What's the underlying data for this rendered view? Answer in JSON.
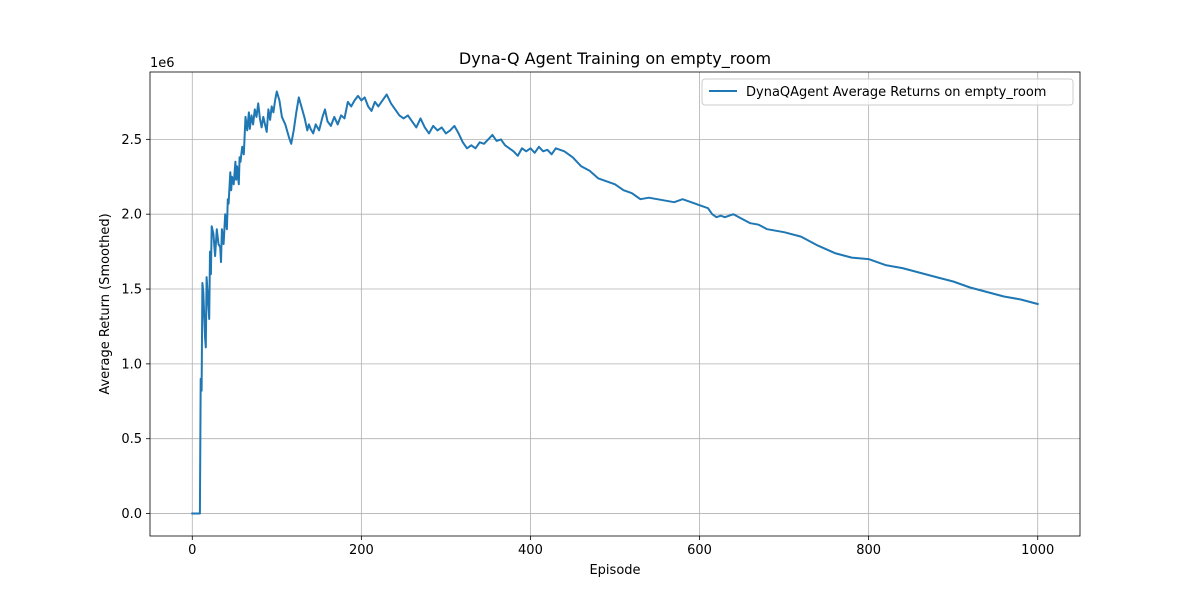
{
  "chart_data": {
    "type": "line",
    "title": "Dyna-Q Agent Training on empty_room",
    "xlabel": "Episode",
    "ylabel": "Average Return (Smoothed)",
    "y_offset_label": "1e6",
    "xlim": [
      -50,
      1050
    ],
    "ylim": [
      -150000,
      2950000
    ],
    "xticks": [
      0,
      200,
      400,
      600,
      800,
      1000
    ],
    "xtick_labels": [
      "0",
      "200",
      "400",
      "600",
      "800",
      "1000"
    ],
    "yticks": [
      0,
      500000,
      1000000,
      1500000,
      2000000,
      2500000
    ],
    "ytick_labels": [
      "0.0",
      "0.5",
      "1.0",
      "1.5",
      "2.0",
      "2.5"
    ],
    "grid": true,
    "legend_position": "top-right",
    "series": [
      {
        "name": "DynaQAgent Average Returns on empty_room",
        "color": "#1f77b4",
        "x": [
          0,
          5,
          9,
          10,
          11,
          12,
          13,
          15,
          16,
          17,
          19,
          20,
          21,
          22,
          23,
          25,
          27,
          29,
          31,
          33,
          34,
          35,
          37,
          39,
          41,
          42,
          43,
          45,
          46,
          47,
          49,
          51,
          52,
          53,
          55,
          56,
          57,
          59,
          61,
          63,
          65,
          67,
          68,
          70,
          72,
          74,
          76,
          78,
          80,
          82,
          84,
          86,
          88,
          90,
          92,
          94,
          96,
          98,
          100,
          103,
          106,
          110,
          114,
          117,
          120,
          123,
          126,
          130,
          133,
          136,
          138,
          140,
          143,
          146,
          150,
          154,
          157,
          160,
          164,
          168,
          172,
          176,
          180,
          184,
          188,
          192,
          196,
          200,
          204,
          208,
          212,
          216,
          220,
          225,
          230,
          235,
          240,
          245,
          250,
          255,
          260,
          265,
          270,
          275,
          280,
          285,
          290,
          295,
          300,
          305,
          310,
          315,
          320,
          325,
          330,
          335,
          340,
          345,
          350,
          355,
          360,
          365,
          370,
          375,
          380,
          385,
          390,
          395,
          400,
          405,
          410,
          415,
          420,
          425,
          430,
          440,
          450,
          460,
          470,
          480,
          490,
          500,
          510,
          520,
          530,
          540,
          550,
          560,
          570,
          580,
          590,
          600,
          610,
          615,
          620,
          625,
          630,
          640,
          650,
          660,
          670,
          680,
          690,
          700,
          720,
          740,
          760,
          780,
          800,
          820,
          840,
          860,
          880,
          900,
          920,
          940,
          960,
          980,
          1000
        ],
        "values": [
          0,
          0,
          0,
          900000,
          820000,
          1540000,
          1480000,
          1180000,
          1110000,
          1580000,
          1400000,
          1300000,
          1750000,
          1600000,
          1920000,
          1870000,
          1720000,
          1900000,
          1800000,
          1780000,
          1680000,
          1900000,
          1800000,
          2000000,
          1900000,
          2100000,
          2070000,
          2280000,
          2160000,
          2250000,
          2200000,
          2350000,
          2230000,
          2320000,
          2200000,
          2380000,
          2350000,
          2450000,
          2400000,
          2650000,
          2560000,
          2680000,
          2570000,
          2660000,
          2600000,
          2700000,
          2650000,
          2740000,
          2640000,
          2580000,
          2650000,
          2600000,
          2550000,
          2700000,
          2630000,
          2720000,
          2680000,
          2760000,
          2820000,
          2760000,
          2650000,
          2600000,
          2520000,
          2470000,
          2560000,
          2680000,
          2780000,
          2700000,
          2640000,
          2560000,
          2600000,
          2570000,
          2540000,
          2600000,
          2560000,
          2650000,
          2700000,
          2620000,
          2590000,
          2650000,
          2600000,
          2660000,
          2640000,
          2750000,
          2720000,
          2760000,
          2790000,
          2760000,
          2780000,
          2720000,
          2690000,
          2750000,
          2720000,
          2760000,
          2800000,
          2740000,
          2700000,
          2660000,
          2640000,
          2660000,
          2620000,
          2580000,
          2640000,
          2580000,
          2540000,
          2590000,
          2560000,
          2580000,
          2540000,
          2560000,
          2590000,
          2540000,
          2480000,
          2440000,
          2460000,
          2440000,
          2480000,
          2470000,
          2500000,
          2530000,
          2490000,
          2500000,
          2460000,
          2440000,
          2420000,
          2390000,
          2440000,
          2420000,
          2440000,
          2410000,
          2450000,
          2420000,
          2430000,
          2400000,
          2440000,
          2420000,
          2380000,
          2320000,
          2290000,
          2240000,
          2220000,
          2200000,
          2160000,
          2140000,
          2100000,
          2110000,
          2100000,
          2090000,
          2080000,
          2100000,
          2080000,
          2060000,
          2040000,
          2000000,
          1980000,
          1990000,
          1980000,
          2000000,
          1970000,
          1940000,
          1930000,
          1900000,
          1890000,
          1880000,
          1850000,
          1790000,
          1740000,
          1710000,
          1700000,
          1660000,
          1640000,
          1610000,
          1580000,
          1550000,
          1510000,
          1480000,
          1450000,
          1430000,
          1400000
        ]
      }
    ]
  }
}
